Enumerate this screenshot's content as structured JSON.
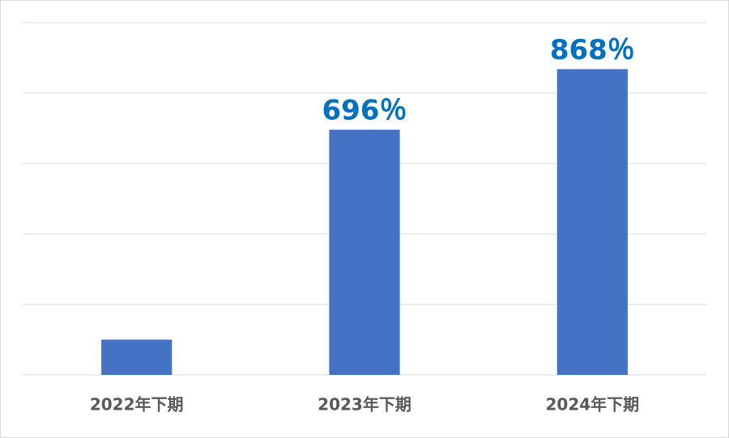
{
  "chart_data": {
    "type": "bar",
    "categories": [
      "2022年下期",
      "2023年下期",
      "2024年下期"
    ],
    "values": [
      100,
      696,
      868
    ],
    "value_labels": [
      null,
      "696％",
      "868％"
    ],
    "color": "#4472c4",
    "ylim": [
      0,
      1000
    ],
    "yticks": [
      0,
      200,
      400,
      600,
      800,
      1000
    ],
    "grid": true
  }
}
